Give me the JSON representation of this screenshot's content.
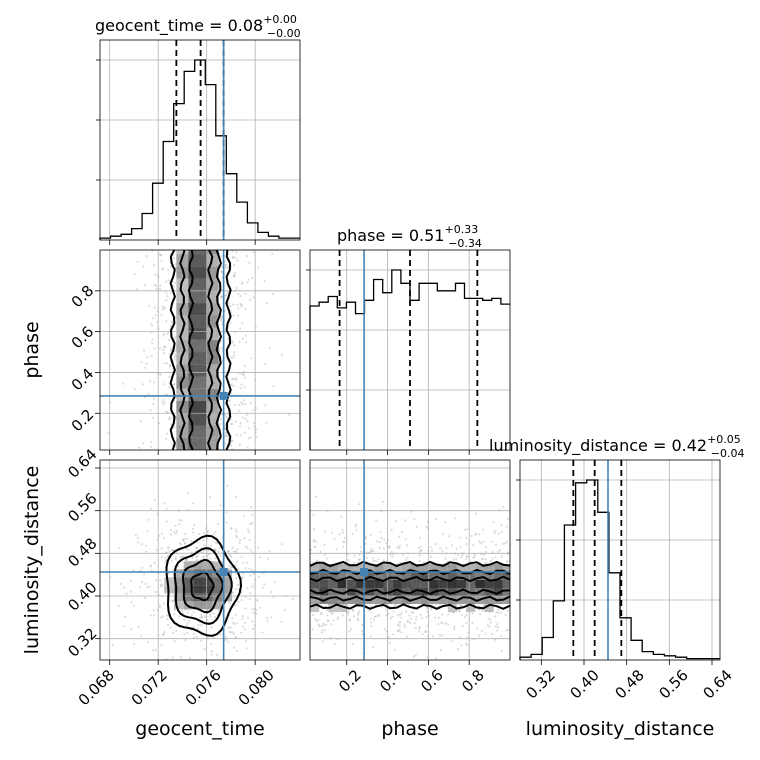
{
  "chart_data": {
    "type": "corner",
    "parameters": [
      {
        "name": "geocent_time",
        "label": "geocent_time",
        "range": [
          0.0672,
          0.0837
        ],
        "ticks": [
          "0.068",
          "0.072",
          "0.076",
          "0.080"
        ],
        "tick_values": [
          0.068,
          0.072,
          0.076,
          0.08
        ]
      },
      {
        "name": "phase",
        "label": "phase",
        "range": [
          0.02,
          1.0
        ],
        "ticks": [
          "0.2",
          "0.4",
          "0.6",
          "0.8"
        ],
        "tick_values": [
          0.2,
          0.4,
          0.6,
          0.8
        ]
      },
      {
        "name": "luminosity_distance",
        "label": "luminosity_distance",
        "range": [
          0.28,
          0.655
        ],
        "ticks": [
          "0.32",
          "0.40",
          "0.48",
          "0.56",
          "0.64"
        ],
        "tick_values": [
          0.32,
          0.4,
          0.48,
          0.56,
          0.64
        ]
      }
    ],
    "titles": [
      {
        "text": "geocent_time = 0.08",
        "sup": "+0.00",
        "sub": "−0.00"
      },
      {
        "text": "phase = 0.51",
        "sup": "+0.33",
        "sub": "−0.34"
      },
      {
        "text": "luminosity_distance = 0.42",
        "sup": "+0.05",
        "sub": "−0.04"
      }
    ],
    "quantiles": {
      "geocent_time": [
        0.0735,
        0.0755,
        0.0774
      ],
      "phase": [
        0.165,
        0.51,
        0.84
      ],
      "luminosity_distance": [
        0.38,
        0.42,
        0.47
      ]
    },
    "truths": {
      "geocent_time": 0.0774,
      "phase": 0.285,
      "luminosity_distance": 0.445
    },
    "histograms": {
      "geocent_time": [
        1,
        2,
        3,
        6,
        14,
        30,
        52,
        72,
        89,
        95,
        82,
        55,
        35,
        20,
        9,
        4,
        2,
        1,
        1
      ],
      "phase": [
        76,
        78,
        81,
        75,
        78,
        72,
        79,
        90,
        83,
        95,
        88,
        79,
        88,
        88,
        84,
        84,
        88,
        80,
        80,
        79,
        80,
        77
      ],
      "luminosity_distance": [
        2,
        4,
        16,
        42,
        96,
        126,
        128,
        105,
        62,
        30,
        14,
        6,
        4,
        3,
        2,
        1,
        1,
        1
      ]
    },
    "grid": true
  }
}
